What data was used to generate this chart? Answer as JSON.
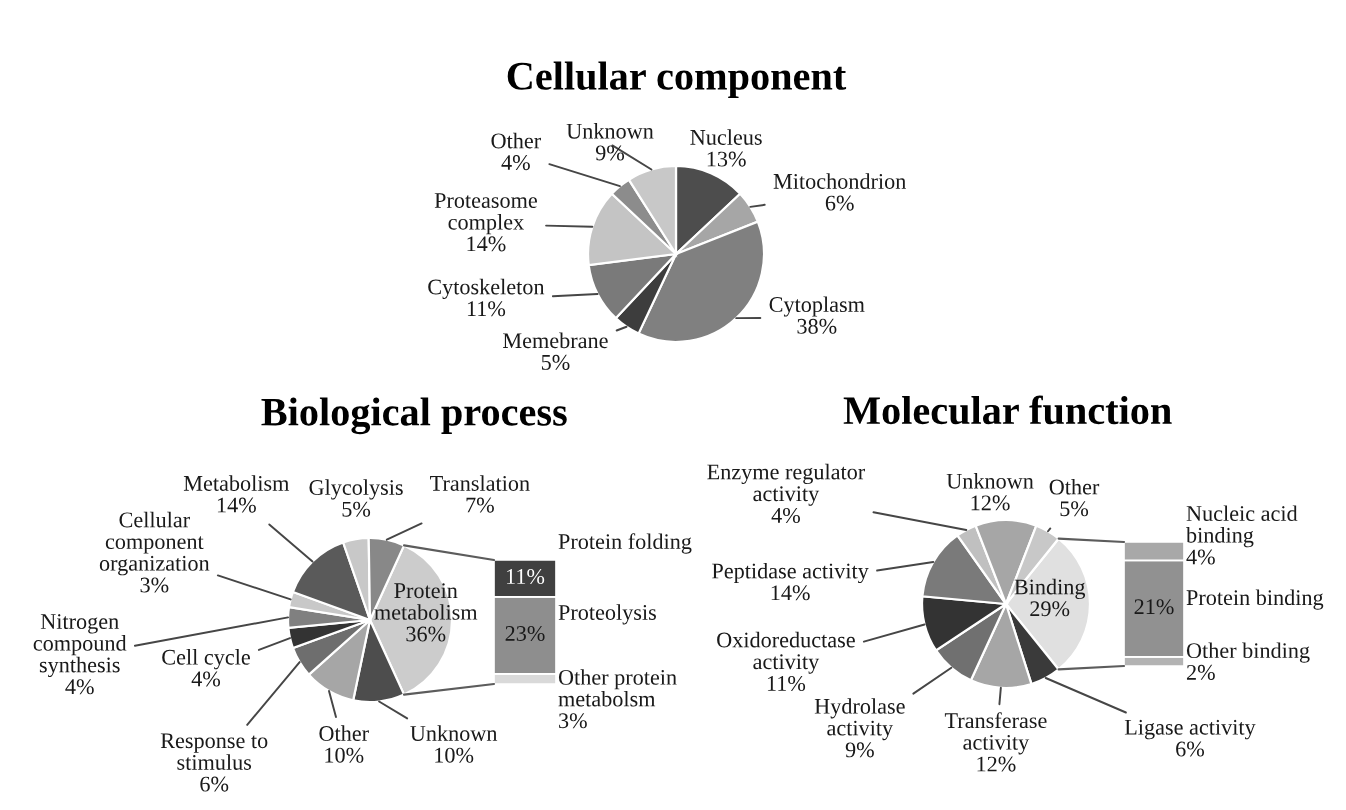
{
  "chart_data": [
    {
      "type": "pie",
      "title": "Cellular component",
      "categories": [
        "Nucleus",
        "Mitochondrion",
        "Cytoplasm",
        "Memebrane",
        "Cytoskeleton",
        "Proteasome complex",
        "Other",
        "Unknown"
      ],
      "values": [
        13,
        6,
        38,
        5,
        11,
        14,
        4,
        9
      ],
      "value_labels": [
        "13%",
        "6%",
        "38%",
        "5%",
        "11%",
        "14%",
        "4%",
        "9%"
      ],
      "colors": [
        "#4d4d4d",
        "#a6a6a6",
        "#808080",
        "#3d3d3d",
        "#7a7a7a",
        "#c4c4c4",
        "#8c8c8c",
        "#c8c8c8"
      ]
    },
    {
      "type": "pie",
      "title": "Biological process",
      "categories": [
        "Protein metabolism",
        "Unknown",
        "Other",
        "Response to stimulus",
        "Cell cycle",
        "Nitrogen compound synthesis",
        "Cellular component organization",
        "Metabolism",
        "Glycolysis",
        "Translation"
      ],
      "values": [
        36,
        10,
        10,
        6,
        4,
        4,
        3,
        14,
        5,
        7
      ],
      "value_labels": [
        "36%",
        "10%",
        "10%",
        "6%",
        "4%",
        "4%",
        "3%",
        "14%",
        "5%",
        "7%"
      ],
      "colors": [
        "#cccccc",
        "#4d4d4d",
        "#a6a6a6",
        "#6e6e6e",
        "#333333",
        "#808080",
        "#c8c8c8",
        "#5a5a5a",
        "#c8c8c8",
        "#888888"
      ]
    },
    {
      "type": "bar",
      "stacked": true,
      "categories": [
        null
      ],
      "series": [
        {
          "name": "Other protein metabolsm",
          "color": "#d9d9d9",
          "values": [
            3
          ],
          "value_labels": [
            "3%"
          ]
        },
        {
          "name": "Proteolysis",
          "color": "#8e8e8e",
          "values": [
            23
          ],
          "value_labels": [
            "23%"
          ]
        },
        {
          "name": "Protein folding",
          "color": "#404040",
          "values": [
            11
          ],
          "value_labels": [
            "11%"
          ]
        }
      ]
    },
    {
      "type": "pie",
      "title": "Molecular function",
      "categories": [
        "Binding",
        "Ligase activity",
        "Transferase activity",
        "Hydrolase activity",
        "Oxidoreductase activity",
        "Peptidase activity",
        "Enzyme regulator activity",
        "Unknown",
        "Other"
      ],
      "values": [
        29,
        6,
        12,
        9,
        11,
        14,
        4,
        12,
        5
      ],
      "value_labels": [
        "29%",
        "6%",
        "12%",
        "9%",
        "11%",
        "14%",
        "4%",
        "12%",
        "5%"
      ],
      "colors": [
        "#e0e0e0",
        "#3a3a3a",
        "#a6a6a6",
        "#707070",
        "#333333",
        "#7a7a7a",
        "#c0c0c0",
        "#a6a6a6",
        "#c8c8c8"
      ]
    },
    {
      "type": "bar",
      "stacked": true,
      "categories": [
        null
      ],
      "series": [
        {
          "name": "Other binding",
          "color": "#b3b3b3",
          "values": [
            2
          ],
          "value_labels": [
            "2%"
          ]
        },
        {
          "name": "Protein binding",
          "color": "#919191",
          "values": [
            21
          ],
          "value_labels": [
            "21%"
          ]
        },
        {
          "name": "Nucleic acid binding",
          "color": "#a8a8a8",
          "values": [
            4
          ],
          "value_labels": [
            "4%"
          ]
        }
      ]
    }
  ]
}
